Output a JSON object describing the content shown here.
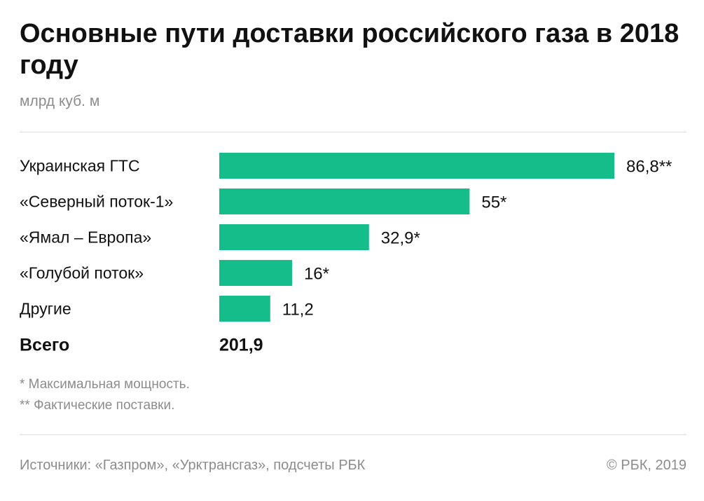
{
  "header": {
    "title": "Основные пути доставки российского газа в 2018 году",
    "unit": "млрд куб. м"
  },
  "chart_data": {
    "type": "bar",
    "orientation": "horizontal",
    "categories": [
      "Украинская ГТС",
      "«Северный поток-1»",
      "«Ямал – Европа»",
      "«Голубой поток»",
      "Другие"
    ],
    "values": [
      86.8,
      55,
      32.9,
      16,
      11.2
    ],
    "value_labels": [
      "86,8**",
      "55*",
      "32,9*",
      "16*",
      "11,2"
    ],
    "total_label": "Всего",
    "total_value": "201,9",
    "bar_color": "#14bd8a",
    "unit": "млрд куб. м"
  },
  "footnotes": [
    "* Максимальная мощность.",
    "** Фактические поставки."
  ],
  "footer": {
    "source": "Источники: «Газпром», «Урктрансгаз», подсчеты РБК",
    "copyright": "© РБК, 2019"
  }
}
